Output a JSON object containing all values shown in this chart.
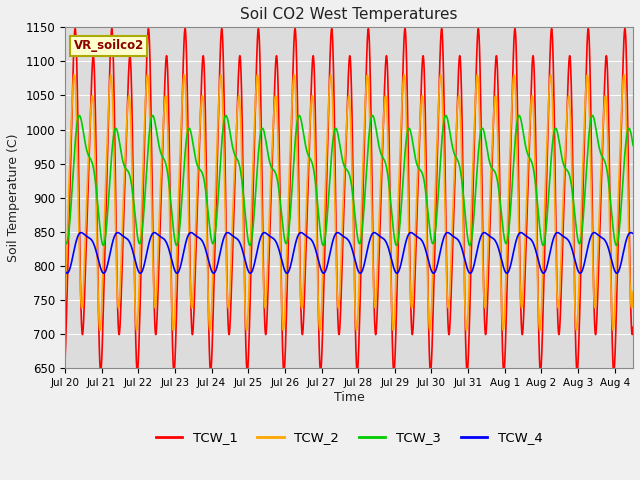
{
  "title": "Soil CO2 West Temperatures",
  "ylabel": "Soil Temperature (C)",
  "xlabel": "Time",
  "annotation": "VR_soilco2",
  "ylim": [
    650,
    1150
  ],
  "background_color": "#dcdcdc",
  "fig_bg_color": "#f0f0f0",
  "tick_labels": [
    "Jul 20",
    "Jul 21",
    "Jul 22",
    "Jul 23",
    "Jul 24",
    "Jul 25",
    "Jul 26",
    "Jul 27",
    "Jul 28",
    "Jul 29",
    "Jul 30",
    "Jul 31",
    "Aug 1",
    "Aug 2",
    "Aug 3",
    "Aug 4"
  ],
  "yticks": [
    650,
    700,
    750,
    800,
    850,
    900,
    950,
    1000,
    1050,
    1100,
    1150
  ],
  "linewidth": 1.2,
  "grid_color": "#ffffff",
  "legend_colors": [
    "#ff0000",
    "#ffa500",
    "#00cc00",
    "#0000ff"
  ],
  "legend_labels": [
    "TCW_1",
    "TCW_2",
    "TCW_3",
    "TCW_4"
  ]
}
